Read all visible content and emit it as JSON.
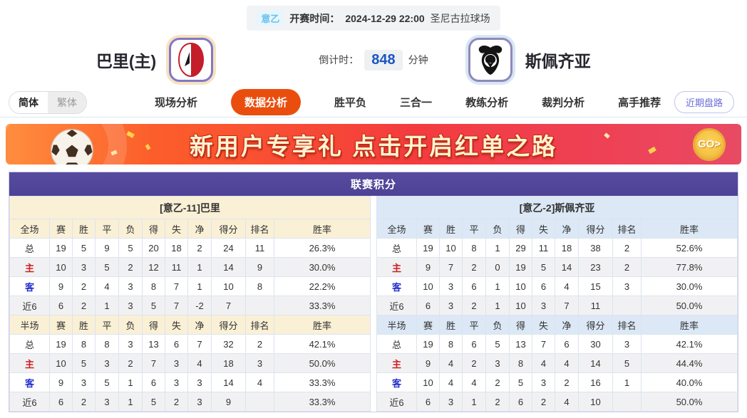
{
  "page": {
    "league_badge": "意乙",
    "kickoff_label": "开赛时间：",
    "kickoff_time": "2024-12-29 22:00",
    "venue": "圣尼古拉球场",
    "home_team": "巴里(主)",
    "away_team": "斯佩齐亚",
    "countdown_label": "倒计时：",
    "countdown_value": "848",
    "countdown_unit": "分钟"
  },
  "nav": {
    "lang_simplified": "简体",
    "lang_traditional": "繁体",
    "tabs": [
      {
        "label": "现场分析",
        "active": false
      },
      {
        "label": "数据分析",
        "active": true
      },
      {
        "label": "胜平负",
        "active": false
      },
      {
        "label": "三合一",
        "active": false
      },
      {
        "label": "教练分析",
        "active": false
      },
      {
        "label": "裁判分析",
        "active": false
      },
      {
        "label": "高手推荐",
        "active": false
      }
    ],
    "recent_trend_button": "近期盘路"
  },
  "banner": {
    "text": "新用户专享礼  点击开启红单之路",
    "go_label": "GO>"
  },
  "league_table": {
    "title": "联赛积分",
    "home": {
      "header": "[意乙-11]巴里",
      "full_columns": [
        "全场",
        "赛",
        "胜",
        "平",
        "负",
        "得",
        "失",
        "净",
        "得分",
        "排名",
        "胜率"
      ],
      "full_rows": [
        [
          "总",
          "19",
          "5",
          "9",
          "5",
          "20",
          "18",
          "2",
          "24",
          "11",
          "26.3%"
        ],
        [
          "主",
          "10",
          "3",
          "5",
          "2",
          "12",
          "11",
          "1",
          "14",
          "9",
          "30.0%"
        ],
        [
          "客",
          "9",
          "2",
          "4",
          "3",
          "8",
          "7",
          "1",
          "10",
          "8",
          "22.2%"
        ],
        [
          "近6",
          "6",
          "2",
          "1",
          "3",
          "5",
          "7",
          "-2",
          "7",
          "",
          "33.3%"
        ]
      ],
      "half_columns": [
        "半场",
        "赛",
        "胜",
        "平",
        "负",
        "得",
        "失",
        "净",
        "得分",
        "排名",
        "胜率"
      ],
      "half_rows": [
        [
          "总",
          "19",
          "8",
          "8",
          "3",
          "13",
          "6",
          "7",
          "32",
          "2",
          "42.1%"
        ],
        [
          "主",
          "10",
          "5",
          "3",
          "2",
          "7",
          "3",
          "4",
          "18",
          "3",
          "50.0%"
        ],
        [
          "客",
          "9",
          "3",
          "5",
          "1",
          "6",
          "3",
          "3",
          "14",
          "4",
          "33.3%"
        ],
        [
          "近6",
          "6",
          "2",
          "3",
          "1",
          "5",
          "2",
          "3",
          "9",
          "",
          "33.3%"
        ]
      ]
    },
    "away": {
      "header": "[意乙-2]斯佩齐亚",
      "full_columns": [
        "全场",
        "赛",
        "胜",
        "平",
        "负",
        "得",
        "失",
        "净",
        "得分",
        "排名",
        "胜率"
      ],
      "full_rows": [
        [
          "总",
          "19",
          "10",
          "8",
          "1",
          "29",
          "11",
          "18",
          "38",
          "2",
          "52.6%"
        ],
        [
          "主",
          "9",
          "7",
          "2",
          "0",
          "19",
          "5",
          "14",
          "23",
          "2",
          "77.8%"
        ],
        [
          "客",
          "10",
          "3",
          "6",
          "1",
          "10",
          "6",
          "4",
          "15",
          "3",
          "30.0%"
        ],
        [
          "近6",
          "6",
          "3",
          "2",
          "1",
          "10",
          "3",
          "7",
          "11",
          "",
          "50.0%"
        ]
      ],
      "half_columns": [
        "半场",
        "赛",
        "胜",
        "平",
        "负",
        "得",
        "失",
        "净",
        "得分",
        "排名",
        "胜率"
      ],
      "half_rows": [
        [
          "总",
          "19",
          "8",
          "6",
          "5",
          "13",
          "7",
          "6",
          "30",
          "3",
          "42.1%"
        ],
        [
          "主",
          "9",
          "4",
          "2",
          "3",
          "8",
          "4",
          "4",
          "14",
          "5",
          "44.4%"
        ],
        [
          "客",
          "10",
          "4",
          "4",
          "2",
          "5",
          "3",
          "2",
          "16",
          "1",
          "40.0%"
        ],
        [
          "近6",
          "6",
          "3",
          "1",
          "2",
          "6",
          "2",
          "4",
          "10",
          "",
          "50.0%"
        ]
      ]
    }
  },
  "colors": {
    "accent_orange": "#ea4e0e",
    "header_purple": "#52479d",
    "home_header_bg": "#faf0d6",
    "away_header_bg": "#dce8f5",
    "home_row_label": "#cc2020",
    "away_row_label": "#2230cc",
    "countdown_blue": "#1a56c4",
    "league_badge_blue": "#66c2ea"
  }
}
